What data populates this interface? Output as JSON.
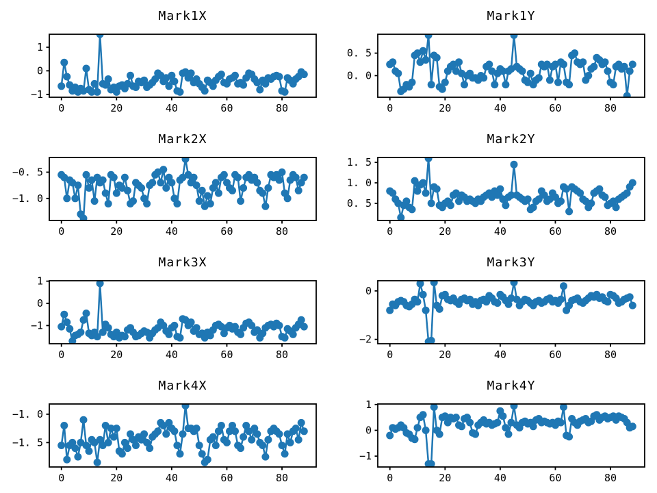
{
  "figure": {
    "background": "#ffffff",
    "line_color": "#1f77b4",
    "marker": "circle",
    "n_points": 89,
    "xtick_labels": [
      "0",
      "20",
      "40",
      "60",
      "80"
    ]
  },
  "chart_data": [
    {
      "type": "line",
      "title": "Mark1X",
      "xlim": [
        -4.4,
        92.4
      ],
      "ylim": [
        -1.12,
        1.55
      ],
      "xticks": [
        0,
        20,
        40,
        60,
        80
      ],
      "yticks": [
        1,
        0,
        -1
      ],
      "ytick_labels": [
        "1",
        "0",
        "−1"
      ],
      "values": [
        -0.65,
        0.35,
        -0.25,
        -0.6,
        -0.85,
        -0.7,
        -0.9,
        -0.75,
        -0.85,
        0.1,
        -0.8,
        -0.9,
        -0.55,
        -0.9,
        1.55,
        -0.55,
        -0.6,
        -0.35,
        -0.8,
        -0.7,
        -0.9,
        -0.65,
        -0.6,
        -0.75,
        -0.55,
        -0.2,
        -0.65,
        -0.7,
        -0.45,
        -0.5,
        -0.4,
        -0.7,
        -0.6,
        -0.5,
        -0.35,
        -0.1,
        -0.2,
        -0.45,
        -0.3,
        -0.65,
        -0.2,
        -0.45,
        -0.85,
        -0.9,
        -0.1,
        -0.05,
        -0.3,
        -0.1,
        -0.5,
        -0.35,
        -0.55,
        -0.7,
        -0.85,
        -0.4,
        -0.5,
        -0.65,
        -0.4,
        -0.25,
        -0.15,
        -0.5,
        -0.55,
        -0.35,
        -0.3,
        -0.2,
        -0.55,
        -0.5,
        -0.6,
        -0.3,
        -0.1,
        -0.15,
        -0.35,
        -0.5,
        -0.8,
        -0.4,
        -0.55,
        -0.3,
        -0.35,
        -0.25,
        -0.2,
        -0.25,
        -0.85,
        -0.9,
        -0.3,
        -0.4,
        -0.55,
        -0.35,
        -0.25,
        -0.05,
        -0.15
      ]
    },
    {
      "type": "line",
      "title": "Mark1Y",
      "xlim": [
        -4.4,
        92.4
      ],
      "ylim": [
        -0.48,
        0.92
      ],
      "xticks": [
        0,
        20,
        40,
        60,
        80
      ],
      "yticks": [
        0.5,
        0.0
      ],
      "ytick_labels": [
        "0. 5",
        "0. 0"
      ],
      "values": [
        0.25,
        0.3,
        0.1,
        0.05,
        -0.35,
        -0.3,
        -0.2,
        -0.25,
        -0.15,
        0.45,
        0.5,
        0.3,
        0.55,
        0.35,
        0.9,
        -0.2,
        0.45,
        0.4,
        -0.25,
        -0.3,
        -0.15,
        0.1,
        0.2,
        0.25,
        0.1,
        0.3,
        0.05,
        -0.2,
        0.0,
        0.05,
        -0.05,
        -0.05,
        -0.1,
        0.0,
        -0.05,
        0.2,
        0.25,
        0.1,
        -0.2,
        0.05,
        0.15,
        0.1,
        -0.2,
        0.1,
        0.15,
        0.9,
        0.2,
        0.15,
        0.1,
        -0.1,
        -0.15,
        0.05,
        -0.2,
        -0.1,
        -0.05,
        0.25,
        0.2,
        0.25,
        -0.1,
        0.2,
        0.25,
        -0.15,
        0.3,
        0.25,
        -0.15,
        -0.2,
        0.45,
        0.5,
        0.3,
        0.25,
        0.3,
        -0.1,
        0.0,
        0.15,
        0.2,
        0.4,
        0.35,
        0.25,
        0.3,
        0.1,
        -0.15,
        -0.2,
        0.2,
        0.25,
        0.15,
        0.2,
        -0.45,
        0.1,
        0.25
      ]
    },
    {
      "type": "line",
      "title": "Mark2X",
      "xlim": [
        -4.4,
        92.4
      ],
      "ylim": [
        -1.42,
        -0.22
      ],
      "xticks": [
        0,
        20,
        40,
        60,
        80
      ],
      "yticks": [
        -0.5,
        -1.0
      ],
      "ytick_labels": [
        "−0. 5",
        "−1. 0"
      ],
      "values": [
        -0.55,
        -0.6,
        -1.0,
        -0.65,
        -0.7,
        -1.0,
        -0.75,
        -1.3,
        -1.38,
        -0.55,
        -0.8,
        -0.65,
        -1.05,
        -0.6,
        -0.7,
        -0.65,
        -0.9,
        -1.1,
        -0.55,
        -0.6,
        -0.9,
        -0.75,
        -0.8,
        -0.6,
        -0.85,
        -1.1,
        -1.05,
        -0.7,
        -0.75,
        -0.8,
        -1.0,
        -1.1,
        -0.75,
        -0.7,
        -0.55,
        -0.5,
        -0.7,
        -0.45,
        -0.8,
        -0.6,
        -0.7,
        -1.0,
        -1.1,
        -0.65,
        -0.6,
        -0.25,
        -0.55,
        -0.7,
        -0.6,
        -0.75,
        -1.05,
        -0.85,
        -1.15,
        -0.95,
        -1.1,
        -0.8,
        -0.7,
        -0.9,
        -0.6,
        -0.55,
        -0.7,
        -0.8,
        -0.85,
        -0.55,
        -0.6,
        -1.05,
        -0.8,
        -0.6,
        -0.55,
        -0.65,
        -0.6,
        -0.7,
        -0.85,
        -0.9,
        -1.15,
        -0.8,
        -0.55,
        -0.6,
        -0.55,
        -0.65,
        -0.5,
        -0.9,
        -1.0,
        -0.65,
        -0.55,
        -0.6,
        -0.85,
        -0.7,
        -0.6
      ]
    },
    {
      "type": "line",
      "title": "Mark2Y",
      "xlim": [
        -4.4,
        92.4
      ],
      "ylim": [
        0.08,
        1.62
      ],
      "xticks": [
        0,
        20,
        40,
        60,
        80
      ],
      "yticks": [
        1.5,
        1.0,
        0.5
      ],
      "ytick_labels": [
        "1. 5",
        "1. 0",
        "0. 5"
      ],
      "values": [
        0.8,
        0.75,
        0.6,
        0.5,
        0.15,
        0.45,
        0.55,
        0.4,
        0.35,
        1.05,
        0.8,
        0.95,
        1.0,
        0.75,
        1.6,
        0.5,
        0.9,
        0.85,
        0.45,
        0.4,
        0.5,
        0.55,
        0.45,
        0.7,
        0.75,
        0.55,
        0.7,
        0.65,
        0.55,
        0.6,
        0.55,
        0.5,
        0.6,
        0.55,
        0.65,
        0.7,
        0.75,
        0.65,
        0.8,
        0.7,
        0.85,
        0.6,
        0.45,
        0.65,
        0.7,
        1.45,
        0.7,
        0.65,
        0.6,
        0.55,
        0.6,
        0.35,
        0.4,
        0.55,
        0.6,
        0.8,
        0.7,
        0.55,
        0.6,
        0.75,
        0.65,
        0.5,
        0.55,
        0.9,
        0.85,
        0.3,
        0.9,
        0.85,
        0.8,
        0.75,
        0.6,
        0.55,
        0.4,
        0.5,
        0.75,
        0.8,
        0.85,
        0.7,
        0.65,
        0.45,
        0.5,
        0.55,
        0.4,
        0.6,
        0.65,
        0.7,
        0.75,
        0.9,
        1.0
      ]
    },
    {
      "type": "line",
      "title": "Mark3X",
      "xlim": [
        -4.4,
        92.4
      ],
      "ylim": [
        -1.82,
        1.02
      ],
      "xticks": [
        0,
        20,
        40,
        60,
        80
      ],
      "yticks": [
        1,
        0,
        -1
      ],
      "ytick_labels": [
        "1",
        "0",
        "−1"
      ],
      "values": [
        -1.05,
        -0.5,
        -0.85,
        -1.15,
        -1.7,
        -1.45,
        -1.4,
        -1.3,
        -0.75,
        -0.45,
        -1.35,
        -1.45,
        -1.3,
        -1.5,
        0.9,
        -1.3,
        -0.95,
        -1.1,
        -1.4,
        -1.5,
        -1.3,
        -1.55,
        -1.45,
        -1.5,
        -1.2,
        -1.1,
        -1.3,
        -1.5,
        -1.45,
        -1.35,
        -1.25,
        -1.3,
        -1.55,
        -1.35,
        -1.2,
        -1.1,
        -0.85,
        -1.0,
        -1.25,
        -1.4,
        -1.1,
        -1.0,
        -1.5,
        -1.55,
        -0.7,
        -0.75,
        -1.0,
        -0.85,
        -1.25,
        -1.1,
        -1.4,
        -1.35,
        -1.55,
        -1.3,
        -1.45,
        -1.2,
        -1.0,
        -0.95,
        -1.05,
        -1.35,
        -1.1,
        -1.0,
        -1.15,
        -1.05,
        -1.3,
        -1.4,
        -1.1,
        -0.9,
        -0.85,
        -1.0,
        -1.3,
        -1.2,
        -1.55,
        -1.35,
        -1.1,
        -1.0,
        -0.95,
        -1.05,
        -0.9,
        -1.0,
        -1.5,
        -1.55,
        -1.15,
        -1.25,
        -1.4,
        -1.1,
        -0.95,
        -0.75,
        -1.05
      ]
    },
    {
      "type": "line",
      "title": "Mark3Y",
      "xlim": [
        -4.4,
        92.4
      ],
      "ylim": [
        -2.18,
        0.42
      ],
      "xticks": [
        0,
        20,
        40,
        60,
        80
      ],
      "yticks": [
        0,
        -2
      ],
      "ytick_labels": [
        "0",
        "−2"
      ],
      "values": [
        -0.8,
        -0.55,
        -0.6,
        -0.45,
        -0.4,
        -0.45,
        -0.6,
        -0.65,
        -0.55,
        -0.35,
        -0.45,
        0.3,
        -0.15,
        -0.8,
        -2.1,
        -2.05,
        0.35,
        -0.6,
        -0.75,
        -0.2,
        -0.15,
        -0.35,
        -0.4,
        -0.3,
        -0.45,
        -0.55,
        -0.35,
        -0.3,
        -0.4,
        -0.35,
        -0.55,
        -0.45,
        -0.6,
        -0.4,
        -0.35,
        -0.45,
        -0.2,
        -0.3,
        -0.45,
        -0.5,
        -0.15,
        -0.25,
        -0.4,
        -0.55,
        -0.3,
        0.35,
        -0.35,
        -0.6,
        -0.45,
        -0.35,
        -0.4,
        -0.5,
        -0.6,
        -0.45,
        -0.4,
        -0.5,
        -0.45,
        -0.35,
        -0.3,
        -0.45,
        -0.4,
        -0.5,
        -0.35,
        0.2,
        -0.8,
        -0.6,
        -0.4,
        -0.35,
        -0.3,
        -0.45,
        -0.5,
        -0.4,
        -0.3,
        -0.2,
        -0.25,
        -0.15,
        -0.3,
        -0.25,
        -0.4,
        -0.45,
        -0.15,
        -0.2,
        -0.3,
        -0.5,
        -0.45,
        -0.35,
        -0.3,
        -0.25,
        -0.6
      ]
    },
    {
      "type": "line",
      "title": "Mark4X",
      "xlim": [
        -4.4,
        92.4
      ],
      "ylim": [
        -1.93,
        -0.82
      ],
      "xticks": [
        0,
        20,
        40,
        60,
        80
      ],
      "yticks": [
        -1.0,
        -1.5
      ],
      "ytick_labels": [
        "−1. 0",
        "−1. 5"
      ],
      "values": [
        -1.55,
        -1.2,
        -1.8,
        -1.55,
        -1.5,
        -1.6,
        -1.75,
        -1.5,
        -1.1,
        -1.55,
        -1.65,
        -1.45,
        -1.5,
        -1.85,
        -1.45,
        -1.55,
        -1.2,
        -1.5,
        -1.25,
        -1.4,
        -1.25,
        -1.65,
        -1.7,
        -1.5,
        -1.6,
        -1.35,
        -1.45,
        -1.55,
        -1.4,
        -1.45,
        -1.35,
        -1.5,
        -1.6,
        -1.4,
        -1.35,
        -1.3,
        -1.15,
        -1.2,
        -1.35,
        -1.15,
        -1.25,
        -1.3,
        -1.55,
        -1.7,
        -1.35,
        -0.85,
        -1.25,
        -1.25,
        -1.3,
        -1.25,
        -1.55,
        -1.7,
        -1.85,
        -1.8,
        -1.45,
        -1.4,
        -1.55,
        -1.3,
        -1.2,
        -1.45,
        -1.5,
        -1.3,
        -1.2,
        -1.3,
        -1.55,
        -1.6,
        -1.4,
        -1.2,
        -1.3,
        -1.45,
        -1.25,
        -1.35,
        -1.5,
        -1.55,
        -1.75,
        -1.45,
        -1.3,
        -1.25,
        -1.3,
        -1.35,
        -1.55,
        -1.7,
        -1.35,
        -1.5,
        -1.3,
        -1.25,
        -1.45,
        -1.15,
        -1.3
      ]
    },
    {
      "type": "line",
      "title": "Mark4Y",
      "xlim": [
        -4.4,
        92.4
      ],
      "ylim": [
        -1.42,
        1.02
      ],
      "xticks": [
        0,
        20,
        40,
        60,
        80
      ],
      "yticks": [
        1,
        0,
        -1
      ],
      "ytick_labels": [
        "1",
        "0",
        "−1"
      ],
      "values": [
        -0.2,
        0.1,
        0.05,
        0.1,
        0.2,
        0.1,
        -0.1,
        -0.15,
        -0.3,
        -0.35,
        0.1,
        0.5,
        0.6,
        0.0,
        -1.3,
        -1.3,
        0.9,
        0.0,
        -0.15,
        0.5,
        0.55,
        0.3,
        0.5,
        0.45,
        0.5,
        0.2,
        0.15,
        0.45,
        0.5,
        0.3,
        -0.1,
        -0.15,
        0.2,
        0.3,
        0.4,
        0.25,
        0.3,
        0.2,
        0.25,
        0.3,
        0.75,
        0.55,
        0.1,
        -0.15,
        0.3,
        0.95,
        0.2,
        0.1,
        0.3,
        0.35,
        0.25,
        0.3,
        0.15,
        0.4,
        0.45,
        0.3,
        0.35,
        0.3,
        0.25,
        0.3,
        0.2,
        0.35,
        0.3,
        0.9,
        -0.2,
        -0.25,
        0.45,
        0.3,
        0.2,
        0.35,
        0.4,
        0.45,
        0.3,
        0.35,
        0.55,
        0.6,
        0.4,
        0.5,
        0.55,
        0.45,
        0.5,
        0.55,
        0.4,
        0.55,
        0.5,
        0.45,
        0.3,
        0.1,
        0.15
      ]
    }
  ]
}
